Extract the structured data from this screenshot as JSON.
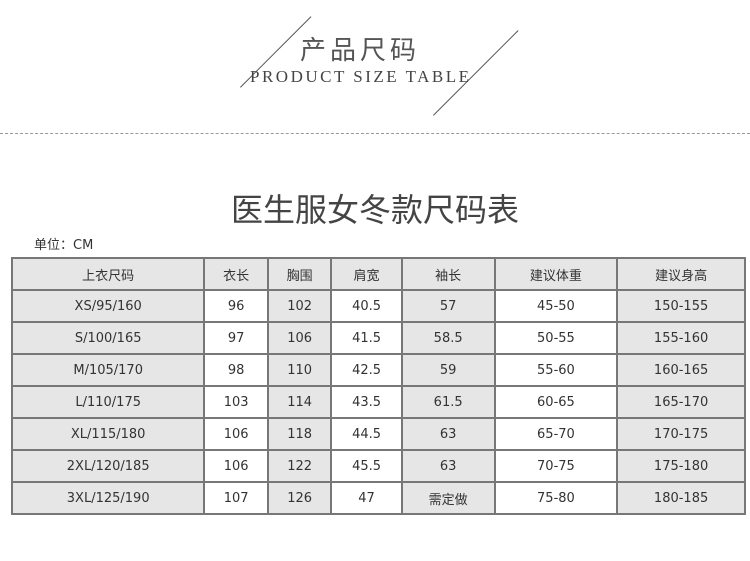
{
  "banner": {
    "cn": "产品尺码",
    "en": "PRODUCT SIZE TABLE"
  },
  "title": "医生服女冬款尺码表",
  "unit": "单位：CM",
  "table": {
    "headers": [
      "上衣尺码",
      "衣长",
      "胸围",
      "肩宽",
      "袖长",
      "建议体重",
      "建议身高"
    ],
    "rows": [
      [
        "XS/95/160",
        "96",
        "102",
        "40.5",
        "57",
        "45-50",
        "150-155"
      ],
      [
        "S/100/165",
        "97",
        "106",
        "41.5",
        "58.5",
        "50-55",
        "155-160"
      ],
      [
        "M/105/170",
        "98",
        "110",
        "42.5",
        "59",
        "55-60",
        "160-165"
      ],
      [
        "L/110/175",
        "103",
        "114",
        "43.5",
        "61.5",
        "60-65",
        "165-170"
      ],
      [
        "XL/115/180",
        "106",
        "118",
        "44.5",
        "63",
        "65-70",
        "170-175"
      ],
      [
        "2XL/120/185",
        "106",
        "122",
        "45.5",
        "63",
        "70-75",
        "175-180"
      ],
      [
        "3XL/125/190",
        "107",
        "126",
        "47",
        "需定做",
        "75-80",
        "180-185"
      ]
    ]
  }
}
